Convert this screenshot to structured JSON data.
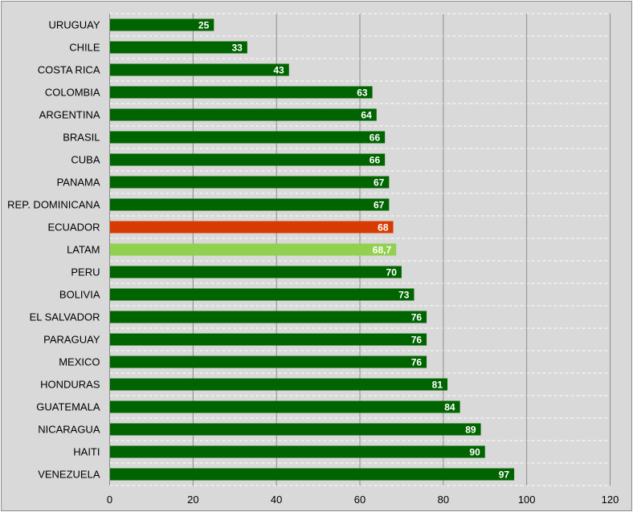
{
  "chart_data": {
    "type": "bar",
    "orientation": "horizontal",
    "categories": [
      "URUGUAY",
      "CHILE",
      "COSTA RICA",
      "COLOMBIA",
      "ARGENTINA",
      "BRASIL",
      "CUBA",
      "PANAMA",
      "REP. DOMINICANA",
      "ECUADOR",
      "LATAM",
      "PERU",
      "BOLIVIA",
      "EL SALVADOR",
      "PARAGUAY",
      "MEXICO",
      "HONDURAS",
      "GUATEMALA",
      "NICARAGUA",
      "HAITI",
      "VENEZUELA"
    ],
    "values": [
      25,
      33,
      43,
      63,
      64,
      66,
      66,
      67,
      67,
      68,
      68.7,
      70,
      73,
      76,
      76,
      76,
      81,
      84,
      89,
      90,
      97
    ],
    "value_labels": [
      "25",
      "33",
      "43",
      "63",
      "64",
      "66",
      "66",
      "67",
      "67",
      "68",
      "68,7",
      "70",
      "73",
      "76",
      "76",
      "76",
      "81",
      "84",
      "89",
      "90",
      "97"
    ],
    "xlim": [
      0,
      120
    ],
    "x_ticks": [
      0,
      20,
      40,
      60,
      80,
      100,
      120
    ],
    "x_tick_labels": [
      "0",
      "20",
      "40",
      "60",
      "80",
      "100",
      "120"
    ],
    "title": "",
    "xlabel": "",
    "ylabel": "",
    "grid": "vertical major lines and dashed horizontal lines",
    "legend": "none",
    "colors": {
      "default_bar": "#006400",
      "highlight_ECUADOR": "#d83b01",
      "highlight_LATAM": "#92d050",
      "background": "#d9d9d9",
      "gridline": "#8c8c8c",
      "dashed_gridline": "#ffffff"
    }
  }
}
